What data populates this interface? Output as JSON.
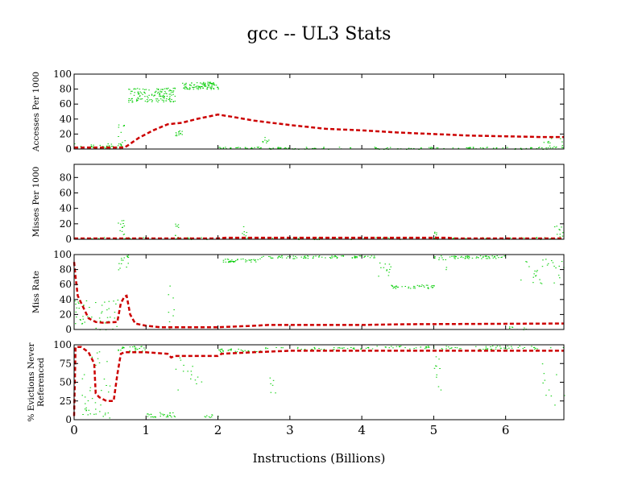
{
  "chart_data": {
    "title": "gcc -- UL3  Stats",
    "xlabel": "Instructions (Billions)",
    "xlim": [
      0,
      6.81
    ],
    "xticks": [
      0,
      1,
      2,
      3,
      4,
      5,
      6
    ],
    "colors": {
      "line": "#cc0000",
      "scatter": "#00cc00"
    },
    "panels": [
      {
        "type": "line+scatter",
        "ylabel": [
          "Accesses Per 1000"
        ],
        "ylim": [
          0,
          100
        ],
        "yticks": [
          0,
          20,
          40,
          60,
          80,
          100
        ],
        "line": [
          [
            0,
            2
          ],
          [
            0.7,
            2
          ],
          [
            0.75,
            5
          ],
          [
            0.9,
            15
          ],
          [
            1.1,
            25
          ],
          [
            1.3,
            33
          ],
          [
            1.5,
            35
          ],
          [
            1.7,
            40
          ],
          [
            2.0,
            46
          ],
          [
            2.2,
            43
          ],
          [
            2.5,
            38
          ],
          [
            3,
            32
          ],
          [
            3.5,
            27
          ],
          [
            4,
            25
          ],
          [
            4.5,
            22
          ],
          [
            5,
            20
          ],
          [
            5.5,
            18
          ],
          [
            6,
            17
          ],
          [
            6.5,
            16
          ],
          [
            6.81,
            16
          ]
        ],
        "scatter_clusters": [
          [
            0,
            0.7,
            0,
            8,
            40
          ],
          [
            0.6,
            0.7,
            5,
            35,
            10
          ],
          [
            0.75,
            1.4,
            63,
            82,
            140
          ],
          [
            1.4,
            1.5,
            18,
            25,
            12
          ],
          [
            1.5,
            2.0,
            80,
            90,
            100
          ],
          [
            2.0,
            2.6,
            1,
            3,
            30
          ],
          [
            2.6,
            2.7,
            8,
            16,
            8
          ],
          [
            2.7,
            6.81,
            0,
            3,
            120
          ],
          [
            6.5,
            6.81,
            2,
            15,
            15
          ]
        ]
      },
      {
        "type": "line+scatter",
        "ylabel": [
          "Misses Per 1000"
        ],
        "ylim": [
          0,
          97
        ],
        "yticks": [
          0,
          20,
          40,
          60,
          80
        ],
        "line": [
          [
            0,
            1
          ],
          [
            2,
            1
          ],
          [
            2.1,
            2
          ],
          [
            5.2,
            2
          ],
          [
            5.3,
            1
          ],
          [
            6.81,
            1
          ]
        ],
        "scatter_clusters": [
          [
            0,
            6.81,
            0,
            3,
            120
          ],
          [
            0.6,
            0.7,
            2,
            25,
            12
          ],
          [
            1.4,
            1.45,
            2,
            28,
            8
          ],
          [
            2.3,
            2.4,
            2,
            18,
            6
          ],
          [
            5.0,
            5.05,
            2,
            10,
            5
          ],
          [
            6.6,
            6.81,
            2,
            20,
            10
          ]
        ]
      },
      {
        "type": "line+scatter",
        "ylabel": [
          "Miss Rate"
        ],
        "ylim": [
          0,
          100
        ],
        "yticks": [
          0,
          20,
          40,
          60,
          80,
          100
        ],
        "line": [
          [
            0,
            90
          ],
          [
            0.02,
            70
          ],
          [
            0.05,
            45
          ],
          [
            0.1,
            35
          ],
          [
            0.15,
            25
          ],
          [
            0.2,
            15
          ],
          [
            0.3,
            10
          ],
          [
            0.4,
            9
          ],
          [
            0.6,
            10
          ],
          [
            0.65,
            35
          ],
          [
            0.7,
            44
          ],
          [
            0.73,
            45
          ],
          [
            0.78,
            20
          ],
          [
            0.85,
            8
          ],
          [
            1,
            5
          ],
          [
            1.2,
            3
          ],
          [
            2,
            3
          ],
          [
            2.5,
            5
          ],
          [
            2.7,
            6
          ],
          [
            4,
            6
          ],
          [
            4.6,
            7
          ],
          [
            6.81,
            8
          ]
        ],
        "scatter_clusters": [
          [
            0,
            0.6,
            0,
            40,
            50
          ],
          [
            0.6,
            0.75,
            80,
            100,
            15
          ],
          [
            1.3,
            1.4,
            0,
            60,
            8
          ],
          [
            2.05,
            2.6,
            90,
            95,
            40
          ],
          [
            2.6,
            4.2,
            95,
            99,
            80
          ],
          [
            4.2,
            4.4,
            70,
            90,
            12
          ],
          [
            4.4,
            5.0,
            55,
            60,
            40
          ],
          [
            5.0,
            6.0,
            95,
            99,
            60
          ],
          [
            5.2,
            5.0,
            80,
            95,
            5
          ],
          [
            6.0,
            6.3,
            0,
            5,
            8
          ],
          [
            6.2,
            6.81,
            60,
            95,
            30
          ]
        ]
      },
      {
        "type": "line+scatter",
        "ylabel": [
          "% Evictions Never",
          "Referenced"
        ],
        "ylim": [
          0,
          100
        ],
        "yticks": [
          0,
          25,
          50,
          75,
          100
        ],
        "line": [
          [
            0,
            5
          ],
          [
            0.02,
            97
          ],
          [
            0.1,
            97
          ],
          [
            0.2,
            90
          ],
          [
            0.28,
            75
          ],
          [
            0.3,
            35
          ],
          [
            0.35,
            30
          ],
          [
            0.45,
            25
          ],
          [
            0.55,
            25
          ],
          [
            0.6,
            60
          ],
          [
            0.65,
            88
          ],
          [
            0.7,
            90
          ],
          [
            1,
            90
          ],
          [
            1.3,
            88
          ],
          [
            1.35,
            83
          ],
          [
            1.4,
            85
          ],
          [
            2,
            85
          ],
          [
            2.05,
            88
          ],
          [
            2.5,
            90
          ],
          [
            3,
            92
          ],
          [
            6.81,
            92
          ]
        ],
        "scatter_clusters": [
          [
            0.1,
            0.5,
            0,
            95,
            40
          ],
          [
            0.6,
            1.0,
            90,
            99,
            30
          ],
          [
            1.0,
            1.4,
            3,
            10,
            30
          ],
          [
            1.4,
            1.8,
            40,
            90,
            15
          ],
          [
            1.8,
            2.0,
            3,
            8,
            10
          ],
          [
            2.0,
            2.6,
            90,
            95,
            30
          ],
          [
            2.7,
            2.8,
            30,
            60,
            6
          ],
          [
            2.6,
            4.2,
            94,
            97,
            40
          ],
          [
            4.2,
            5.0,
            95,
            99,
            30
          ],
          [
            5.0,
            5.1,
            40,
            90,
            10
          ],
          [
            5.1,
            6.81,
            94,
            99,
            50
          ],
          [
            6.5,
            6.81,
            10,
            80,
            10
          ]
        ]
      }
    ]
  }
}
